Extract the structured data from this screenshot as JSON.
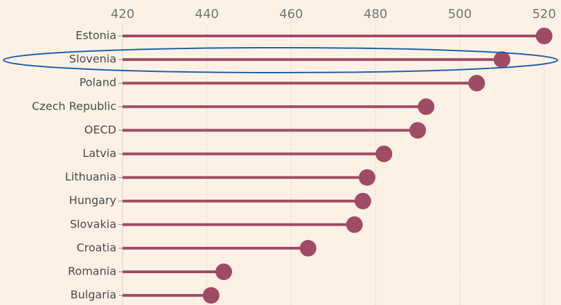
{
  "chart_data": {
    "type": "lollipop",
    "categories": [
      "Estonia",
      "Slovenia",
      "Poland",
      "Czech Republic",
      "OECD",
      "Latvia",
      "Lithuania",
      "Hungary",
      "Slovakia",
      "Croatia",
      "Romania",
      "Bulgaria"
    ],
    "values": [
      520,
      510,
      504,
      492,
      490,
      482,
      478,
      477,
      475,
      464,
      444,
      441
    ],
    "color": "#a04b66",
    "xlim": [
      420,
      524
    ],
    "xticks": [
      420,
      440,
      460,
      480,
      500,
      520
    ],
    "grid": true
  }
}
